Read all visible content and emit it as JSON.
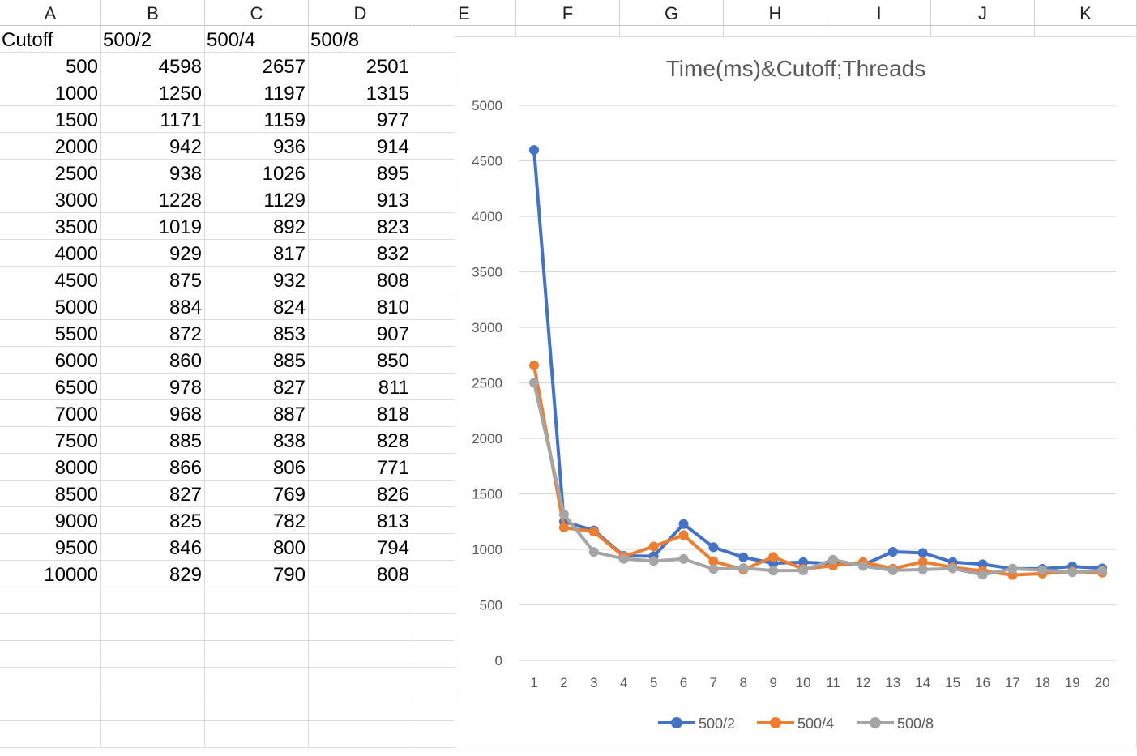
{
  "sheet": {
    "column_headers": [
      "A",
      "B",
      "C",
      "D",
      "E",
      "F",
      "G",
      "H",
      "I",
      "J",
      "K"
    ],
    "header_row": [
      "Cutoff",
      "500/2",
      "500/4",
      "500/8"
    ],
    "rows": [
      [
        "500",
        "4598",
        "2657",
        "2501"
      ],
      [
        "1000",
        "1250",
        "1197",
        "1315"
      ],
      [
        "1500",
        "1171",
        "1159",
        "977"
      ],
      [
        "2000",
        "942",
        "936",
        "914"
      ],
      [
        "2500",
        "938",
        "1026",
        "895"
      ],
      [
        "3000",
        "1228",
        "1129",
        "913"
      ],
      [
        "3500",
        "1019",
        "892",
        "823"
      ],
      [
        "4000",
        "929",
        "817",
        "832"
      ],
      [
        "4500",
        "875",
        "932",
        "808"
      ],
      [
        "5000",
        "884",
        "824",
        "810"
      ],
      [
        "5500",
        "872",
        "853",
        "907"
      ],
      [
        "6000",
        "860",
        "885",
        "850"
      ],
      [
        "6500",
        "978",
        "827",
        "811"
      ],
      [
        "7000",
        "968",
        "887",
        "818"
      ],
      [
        "7500",
        "885",
        "838",
        "828"
      ],
      [
        "8000",
        "866",
        "806",
        "771"
      ],
      [
        "8500",
        "827",
        "769",
        "826"
      ],
      [
        "9000",
        "825",
        "782",
        "813"
      ],
      [
        "9500",
        "846",
        "800",
        "794"
      ],
      [
        "10000",
        "829",
        "790",
        "808"
      ]
    ]
  },
  "chart_data": {
    "type": "line",
    "title": "Time(ms)&Cutoff;Threads",
    "x": [
      1,
      2,
      3,
      4,
      5,
      6,
      7,
      8,
      9,
      10,
      11,
      12,
      13,
      14,
      15,
      16,
      17,
      18,
      19,
      20
    ],
    "ylim": [
      0,
      5000
    ],
    "yticks": [
      0,
      500,
      1000,
      1500,
      2000,
      2500,
      3000,
      3500,
      4000,
      4500,
      5000
    ],
    "grid": true,
    "legend_position": "bottom",
    "series": [
      {
        "name": "500/2",
        "color": "#4472c4",
        "values": [
          4598,
          1250,
          1171,
          942,
          938,
          1228,
          1019,
          929,
          875,
          884,
          872,
          860,
          978,
          968,
          885,
          866,
          827,
          825,
          846,
          829
        ]
      },
      {
        "name": "500/4",
        "color": "#ed7d31",
        "values": [
          2657,
          1197,
          1159,
          936,
          1026,
          1129,
          892,
          817,
          932,
          824,
          853,
          885,
          827,
          887,
          838,
          806,
          769,
          782,
          800,
          790
        ]
      },
      {
        "name": "500/8",
        "color": "#a5a5a5",
        "values": [
          2501,
          1315,
          977,
          914,
          895,
          913,
          823,
          832,
          808,
          810,
          907,
          850,
          811,
          818,
          828,
          771,
          826,
          813,
          794,
          808
        ]
      }
    ]
  }
}
